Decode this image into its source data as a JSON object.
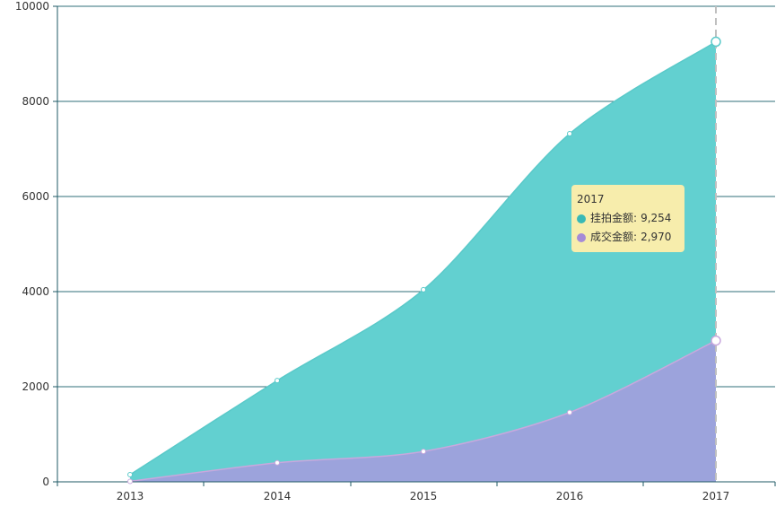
{
  "colors": {
    "series_1": "#62d0d0",
    "series_2": "#9fa0dc",
    "series_1_line": "#5ac9c9",
    "series_2_line": "#c8a8dd",
    "grid": "#2f6f78",
    "axis": "#1f5a66",
    "crosshair": "#bfbfbf"
  },
  "chart_data": {
    "type": "area",
    "x": [
      "2013",
      "2014",
      "2015",
      "2016",
      "2017"
    ],
    "series": [
      {
        "name": "挂拍金额",
        "values": [
          150,
          2130,
          4040,
          7320,
          9254
        ]
      },
      {
        "name": "成交金额",
        "values": [
          10,
          400,
          640,
          1460,
          2970
        ]
      }
    ],
    "ylim": [
      0,
      10000
    ],
    "yticks": [
      "0",
      "2000",
      "4000",
      "6000",
      "8000",
      "10000"
    ],
    "grid": true,
    "title": "",
    "xlabel": "",
    "ylabel": ""
  },
  "tooltip": {
    "title": "2017",
    "rows": [
      {
        "label": "挂拍金额",
        "separator": ":",
        "value": "9,254"
      },
      {
        "label": "成交金额",
        "separator": ":",
        "value": "2,970"
      }
    ]
  }
}
